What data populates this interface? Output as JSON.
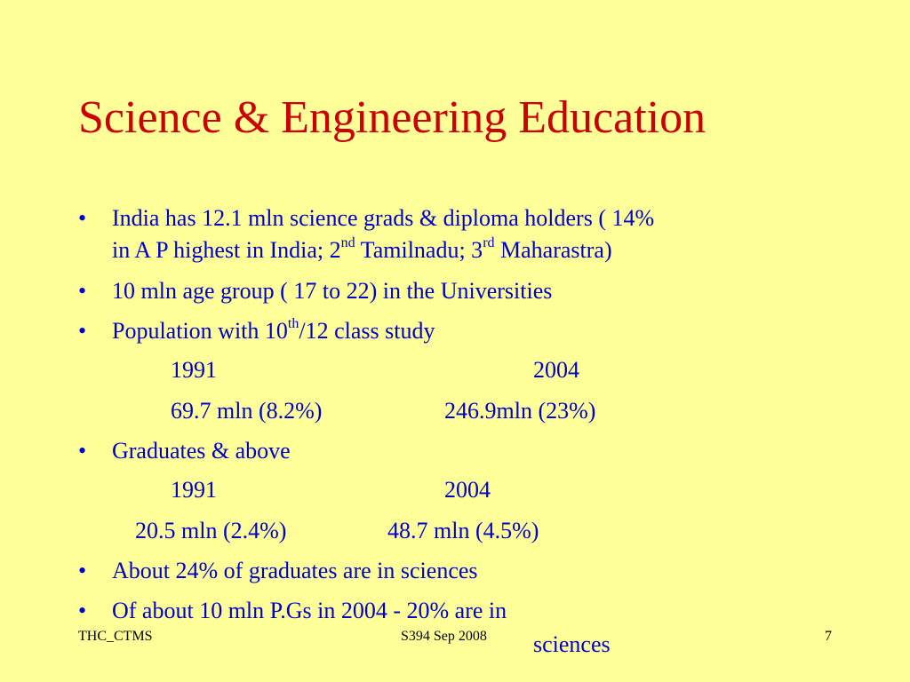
{
  "title": "Science & Engineering Education",
  "bullets": {
    "b1": {
      "line1": "India has 12.1 mln science grads & diploma holders ( 14%",
      "line2_a": "in A P highest in India;  2",
      "line2_sup1": "nd",
      "line2_b": " Tamilnadu; 3",
      "line2_sup2": "rd",
      "line2_c": " Maharastra)"
    },
    "b2": {
      "text": "10 mln age group ( 17 to 22) in the  Universities"
    },
    "b3": {
      "text_a": "Population with 10",
      "sup": "th",
      "text_b": "/12 class study",
      "year_1991": "1991",
      "year_2004": "2004",
      "val_1991": "69.7 mln (8.2%)",
      "val_2004": "246.9mln (23%)"
    },
    "b4": {
      "text": "Graduates & above",
      "year_1991": "1991",
      "year_2004": "2004",
      "val_1991": "20.5 mln (2.4%)",
      "val_2004": "48.7 mln (4.5%)"
    },
    "b5": {
      "text": "About 24% of graduates are in sciences"
    },
    "b6": {
      "text": "Of about 10 mln P.Gs in 2004   - 20% are in",
      "cont": "sciences"
    }
  },
  "footer": {
    "left": "THC_CTMS",
    "center": "S394 Sep 2008",
    "page": "7"
  },
  "colors": {
    "background": "#ffff99",
    "title": "#cc0000",
    "body": "#0000cc"
  }
}
